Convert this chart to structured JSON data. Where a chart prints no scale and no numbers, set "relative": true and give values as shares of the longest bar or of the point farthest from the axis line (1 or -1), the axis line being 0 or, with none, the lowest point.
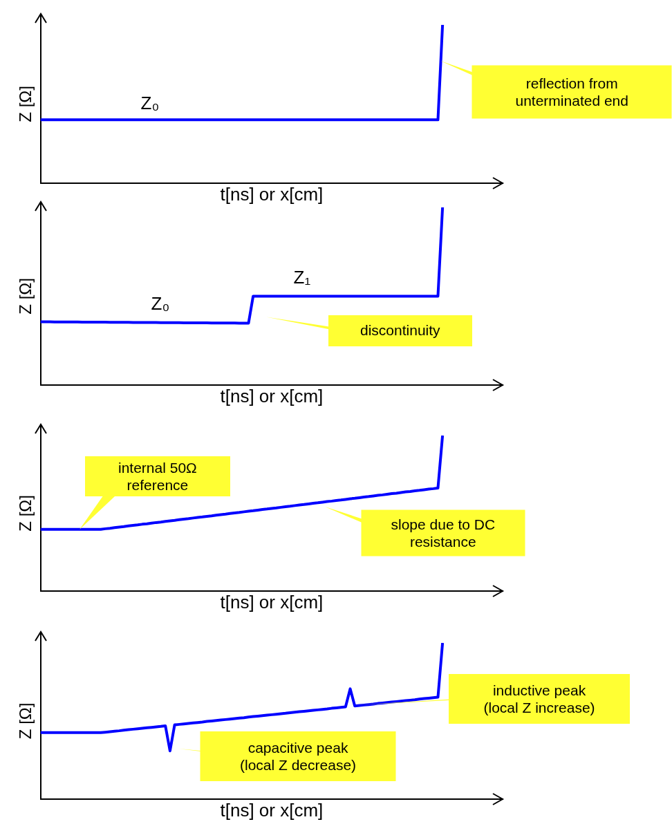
{
  "chart_data": [
    {
      "type": "line",
      "relative": true,
      "xlabel": "t[ns] or x[cm]",
      "ylabel": "Z [Ω]",
      "marker": "none",
      "line_style": "solid",
      "grid": false,
      "legend": false,
      "categories": [
        null,
        null,
        null,
        null,
        null,
        null,
        null,
        null,
        null,
        null,
        null,
        null,
        null,
        null,
        null,
        null,
        null,
        null,
        null,
        null,
        null,
        null,
        null,
        null,
        null,
        null,
        null,
        null,
        null,
        null,
        null,
        null,
        null,
        null,
        null,
        null,
        null,
        null,
        null,
        null,
        null,
        null,
        null,
        null,
        null,
        null,
        null,
        null,
        null,
        null,
        null,
        null,
        null,
        null,
        null,
        null,
        null,
        null,
        null,
        null,
        null,
        null,
        null,
        null,
        null,
        null,
        null,
        null,
        null,
        null,
        null,
        null,
        null,
        null,
        null,
        null,
        null,
        null,
        null,
        null,
        null,
        null,
        null,
        null,
        null,
        null,
        null,
        null,
        null,
        null,
        null,
        null,
        null,
        null,
        null,
        null,
        null,
        null,
        null,
        null,
        null
      ],
      "series": [
        {
          "color": "#0000ff",
          "values": [
            0.4,
            0.4,
            0.4,
            0.4,
            0.4,
            0.4,
            0.4,
            0.4,
            0.4,
            0.4,
            0.4,
            0.4,
            0.4,
            0.4,
            0.4,
            0.4,
            0.4,
            0.4,
            0.4,
            0.4,
            0.4,
            0.4,
            0.4,
            0.4,
            0.4,
            0.4,
            0.4,
            0.4,
            0.4,
            0.4,
            0.4,
            0.4,
            0.4,
            0.4,
            0.4,
            0.4,
            0.4,
            0.4,
            0.4,
            0.4,
            0.4,
            0.4,
            0.4,
            0.4,
            0.4,
            0.4,
            0.4,
            0.4,
            0.4,
            0.4,
            0.4,
            0.4,
            0.4,
            0.4,
            0.4,
            0.4,
            0.4,
            0.4,
            0.4,
            0.4,
            0.4,
            0.4,
            0.4,
            0.4,
            0.4,
            0.4,
            0.4,
            0.4,
            0.4,
            0.4,
            0.4,
            0.4,
            0.4,
            0.4,
            0.4,
            0.4,
            0.4,
            0.4,
            0.4,
            0.4,
            0.4,
            0.4,
            0.4,
            0.4,
            0.4,
            0.4,
            0.4,
            1,
            null,
            null,
            null,
            null,
            null,
            null,
            null,
            null,
            null,
            null,
            null,
            null,
            null
          ]
        }
      ],
      "annotations": [
        "Z₀",
        "reflection from\nunterminated end"
      ]
    },
    {
      "type": "line",
      "relative": true,
      "xlabel": "t[ns] or x[cm]",
      "ylabel": "Z [Ω]",
      "marker": "none",
      "line_style": "solid",
      "grid": false,
      "legend": false,
      "categories": [
        null,
        null,
        null,
        null,
        null,
        null,
        null,
        null,
        null,
        null,
        null,
        null,
        null,
        null,
        null,
        null,
        null,
        null,
        null,
        null,
        null,
        null,
        null,
        null,
        null,
        null,
        null,
        null,
        null,
        null,
        null,
        null,
        null,
        null,
        null,
        null,
        null,
        null,
        null,
        null,
        null,
        null,
        null,
        null,
        null,
        null,
        null,
        null,
        null,
        null,
        null,
        null,
        null,
        null,
        null,
        null,
        null,
        null,
        null,
        null,
        null,
        null,
        null,
        null,
        null,
        null,
        null,
        null,
        null,
        null,
        null,
        null,
        null,
        null,
        null,
        null,
        null,
        null,
        null,
        null,
        null,
        null,
        null,
        null,
        null,
        null,
        null,
        null,
        null,
        null,
        null,
        null,
        null,
        null,
        null,
        null,
        null,
        null,
        null,
        null,
        null
      ],
      "series": [
        {
          "color": "#0000ff",
          "values": [
            0.356,
            0.356,
            0.356,
            0.355,
            0.355,
            0.355,
            0.355,
            0.355,
            0.355,
            0.354,
            0.354,
            0.354,
            0.354,
            0.354,
            0.354,
            0.353,
            0.353,
            0.353,
            0.353,
            0.353,
            0.352,
            0.352,
            0.352,
            0.352,
            0.352,
            0.352,
            0.351,
            0.351,
            0.351,
            0.351,
            0.351,
            0.35,
            0.35,
            0.35,
            0.35,
            0.35,
            0.35,
            0.349,
            0.349,
            0.349,
            0.349,
            0.349,
            0.349,
            0.348,
            0.348,
            0.348,
            0.5,
            0.5,
            0.5,
            0.5,
            0.5,
            0.5,
            0.5,
            0.5,
            0.5,
            0.5,
            0.5,
            0.5,
            0.5,
            0.5,
            0.5,
            0.5,
            0.5,
            0.5,
            0.5,
            0.5,
            0.5,
            0.5,
            0.5,
            0.5,
            0.5,
            0.5,
            0.5,
            0.5,
            0.5,
            0.5,
            0.5,
            0.5,
            0.5,
            0.5,
            0.5,
            0.5,
            0.5,
            0.5,
            0.5,
            0.5,
            0.5,
            1,
            null,
            null,
            null,
            null,
            null,
            null,
            null,
            null,
            null,
            null,
            null,
            null,
            null
          ]
        }
      ],
      "annotations": [
        "Z₀",
        "Z₁",
        "discontinuity"
      ]
    },
    {
      "type": "line",
      "relative": true,
      "xlabel": "t[ns] or x[cm]",
      "ylabel": "Z [Ω]",
      "marker": "none",
      "line_style": "solid",
      "grid": false,
      "legend": false,
      "categories": [
        null,
        null,
        null,
        null,
        null,
        null,
        null,
        null,
        null,
        null,
        null,
        null,
        null,
        null,
        null,
        null,
        null,
        null,
        null,
        null,
        null,
        null,
        null,
        null,
        null,
        null,
        null,
        null,
        null,
        null,
        null,
        null,
        null,
        null,
        null,
        null,
        null,
        null,
        null,
        null,
        null,
        null,
        null,
        null,
        null,
        null,
        null,
        null,
        null,
        null,
        null,
        null,
        null,
        null,
        null,
        null,
        null,
        null,
        null,
        null,
        null,
        null,
        null,
        null,
        null,
        null,
        null,
        null,
        null,
        null,
        null,
        null,
        null,
        null,
        null,
        null,
        null,
        null,
        null,
        null,
        null,
        null,
        null,
        null,
        null,
        null,
        null,
        null,
        null,
        null,
        null,
        null,
        null,
        null,
        null,
        null,
        null,
        null,
        null,
        null,
        null
      ],
      "series": [
        {
          "color": "#0000ff",
          "values": [
            0.396,
            0.396,
            0.396,
            0.396,
            0.396,
            0.396,
            0.396,
            0.396,
            0.396,
            0.396,
            0.396,
            0.396,
            0.396,
            0.396,
            0.4,
            0.403,
            0.407,
            0.411,
            0.414,
            0.418,
            0.422,
            0.425,
            0.429,
            0.432,
            0.436,
            0.44,
            0.443,
            0.447,
            0.451,
            0.454,
            0.458,
            0.462,
            0.465,
            0.469,
            0.473,
            0.476,
            0.48,
            0.483,
            0.487,
            0.491,
            0.494,
            0.498,
            0.502,
            0.505,
            0.509,
            0.513,
            0.516,
            0.52,
            0.524,
            0.527,
            0.531,
            0.534,
            0.538,
            0.542,
            0.545,
            0.549,
            0.553,
            0.556,
            0.56,
            0.564,
            0.567,
            0.571,
            0.575,
            0.578,
            0.582,
            0.585,
            0.589,
            0.593,
            0.596,
            0.6,
            0.604,
            0.607,
            0.611,
            0.615,
            0.618,
            0.622,
            0.626,
            0.629,
            0.633,
            0.637,
            0.64,
            0.644,
            0.647,
            0.651,
            0.655,
            0.658,
            0.662,
            1,
            null,
            null,
            null,
            null,
            null,
            null,
            null,
            null,
            null,
            null,
            null,
            null,
            null
          ]
        }
      ],
      "annotations": [
        "internal 50Ω\nreference",
        "slope due to DC\nresistance"
      ]
    },
    {
      "type": "line",
      "relative": true,
      "xlabel": "t[ns] or x[cm]",
      "ylabel": "Z [Ω]",
      "marker": "none",
      "line_style": "solid",
      "grid": false,
      "legend": false,
      "categories": [
        null,
        null,
        null,
        null,
        null,
        null,
        null,
        null,
        null,
        null,
        null,
        null,
        null,
        null,
        null,
        null,
        null,
        null,
        null,
        null,
        null,
        null,
        null,
        null,
        null,
        null,
        null,
        null,
        null,
        null,
        null,
        null,
        null,
        null,
        null,
        null,
        null,
        null,
        null,
        null,
        null,
        null,
        null,
        null,
        null,
        null,
        null,
        null,
        null,
        null,
        null,
        null,
        null,
        null,
        null,
        null,
        null,
        null,
        null,
        null,
        null,
        null,
        null,
        null,
        null,
        null,
        null,
        null,
        null,
        null,
        null,
        null,
        null,
        null,
        null,
        null,
        null,
        null,
        null,
        null,
        null,
        null,
        null,
        null,
        null,
        null,
        null,
        null,
        null,
        null,
        null,
        null,
        null,
        null,
        null,
        null,
        null,
        null,
        null,
        null,
        null
      ],
      "series": [
        {
          "color": "#0000ff",
          "values": [
            0.425,
            0.425,
            0.425,
            0.425,
            0.425,
            0.425,
            0.425,
            0.425,
            0.425,
            0.425,
            0.425,
            0.425,
            0.425,
            0.425,
            0.428,
            0.431,
            0.434,
            0.437,
            0.441,
            0.444,
            0.447,
            0.45,
            0.453,
            0.456,
            0.459,
            0.462,
            0.465,
            0.469,
            0.308,
            0.475,
            0.478,
            0.481,
            0.484,
            0.487,
            0.49,
            0.493,
            0.497,
            0.5,
            0.503,
            0.506,
            0.509,
            0.512,
            0.515,
            0.518,
            0.521,
            0.525,
            0.528,
            0.531,
            0.534,
            0.537,
            0.54,
            0.543,
            0.546,
            0.549,
            0.553,
            0.556,
            0.559,
            0.562,
            0.565,
            0.568,
            0.571,
            0.574,
            0.577,
            0.581,
            0.584,
            0.587,
            0.59,
            0.706,
            0.596,
            0.599,
            0.602,
            0.605,
            0.608,
            0.612,
            0.615,
            0.618,
            0.621,
            0.624,
            0.627,
            0.63,
            0.633,
            0.636,
            0.64,
            0.643,
            0.646,
            0.649,
            0.652,
            1,
            null,
            null,
            null,
            null,
            null,
            null,
            null,
            null,
            null,
            null,
            null,
            null,
            null
          ]
        }
      ],
      "annotations": [
        "capacitive peak\n(local Z decrease)",
        "inductive peak\n(local Z increase)"
      ]
    }
  ]
}
